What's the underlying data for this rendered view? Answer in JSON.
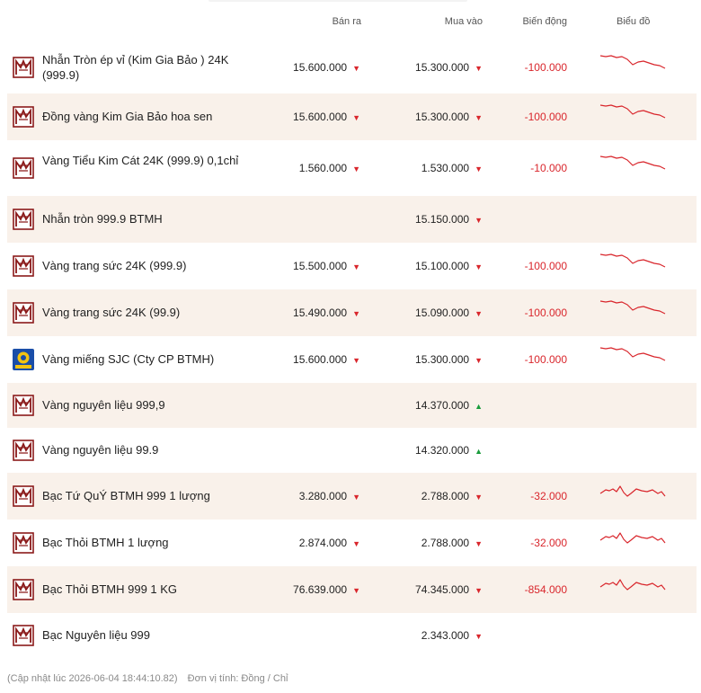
{
  "header": {
    "ban_ra": "Bán ra",
    "mua_vao": "Mua vào",
    "bien_dong": "Biến động",
    "bieu_do": "Biểu đồ"
  },
  "rows": [
    {
      "name": "Nhẫn Tròn ép vỉ (Kim Gia Bảo ) 24K (999.9)",
      "ban": "15.600.000",
      "ban_dir": "down",
      "mua": "15.300.000",
      "mua_dir": "down",
      "change": "-100.000",
      "chart": "gold",
      "logo": "btmh"
    },
    {
      "name": "Đồng vàng Kim Gia Bảo hoa sen",
      "ban": "15.600.000",
      "ban_dir": "down",
      "mua": "15.300.000",
      "mua_dir": "down",
      "change": "-100.000",
      "chart": "gold",
      "logo": "btmh"
    },
    {
      "name": "Vàng Tiểu Kim Cát 24K (999.9) 0,1chỉ",
      "ban": "1.560.000",
      "ban_dir": "down",
      "mua": "1.530.000",
      "mua_dir": "down",
      "change": "-10.000",
      "chart": "gold",
      "logo": "btmh"
    },
    {
      "name": "Nhẫn tròn 999.9 BTMH",
      "ban": "",
      "ban_dir": "",
      "mua": "15.150.000",
      "mua_dir": "down",
      "change": "",
      "chart": "",
      "logo": "btmh"
    },
    {
      "name": "Vàng trang sức 24K (999.9)",
      "ban": "15.500.000",
      "ban_dir": "down",
      "mua": "15.100.000",
      "mua_dir": "down",
      "change": "-100.000",
      "chart": "gold",
      "logo": "btmh"
    },
    {
      "name": "Vàng trang sức 24K (99.9)",
      "ban": "15.490.000",
      "ban_dir": "down",
      "mua": "15.090.000",
      "mua_dir": "down",
      "change": "-100.000",
      "chart": "gold",
      "logo": "btmh"
    },
    {
      "name": "Vàng miếng SJC (Cty CP BTMH)",
      "ban": "15.600.000",
      "ban_dir": "down",
      "mua": "15.300.000",
      "mua_dir": "down",
      "change": "-100.000",
      "chart": "gold",
      "logo": "sjc"
    },
    {
      "name": "Vàng nguyên liệu 999,9",
      "ban": "",
      "ban_dir": "",
      "mua": "14.370.000",
      "mua_dir": "up",
      "change": "",
      "chart": "",
      "logo": "btmh"
    },
    {
      "name": "Vàng nguyên liệu 99.9",
      "ban": "",
      "ban_dir": "",
      "mua": "14.320.000",
      "mua_dir": "up",
      "change": "",
      "chart": "",
      "logo": "btmh"
    },
    {
      "name": "Bạc Tứ QuÝ BTMH 999 1 lượng",
      "ban": "3.280.000",
      "ban_dir": "down",
      "mua": "2.788.000",
      "mua_dir": "down",
      "change": "-32.000",
      "chart": "silver",
      "logo": "btmh"
    },
    {
      "name": "Bạc Thỏi BTMH 1 lượng",
      "ban": "2.874.000",
      "ban_dir": "down",
      "mua": "2.788.000",
      "mua_dir": "down",
      "change": "-32.000",
      "chart": "silver",
      "logo": "btmh"
    },
    {
      "name": "Bạc Thỏi BTMH 999 1 KG",
      "ban": "76.639.000",
      "ban_dir": "down",
      "mua": "74.345.000",
      "mua_dir": "down",
      "change": "-854.000",
      "chart": "silver",
      "logo": "btmh"
    },
    {
      "name": "Bạc Nguyên liệu 999",
      "ban": "",
      "ban_dir": "",
      "mua": "2.343.000",
      "mua_dir": "down",
      "change": "",
      "chart": "",
      "logo": "btmh"
    }
  ],
  "footer": {
    "updated": "(Cập nhật lúc 2026-06-04 18:44:10.82)",
    "unit": "Đơn vị tính: Đồng / Chỉ"
  },
  "colors": {
    "down": "#d9262c",
    "up": "#1a9c3c",
    "brand": "#8b1a1a",
    "alt_row": "#f9f1ea"
  },
  "icons": {
    "btmh": "btmh-logo-icon",
    "sjc": "sjc-logo-icon",
    "down": "triangle-down-icon",
    "up": "triangle-up-icon"
  }
}
